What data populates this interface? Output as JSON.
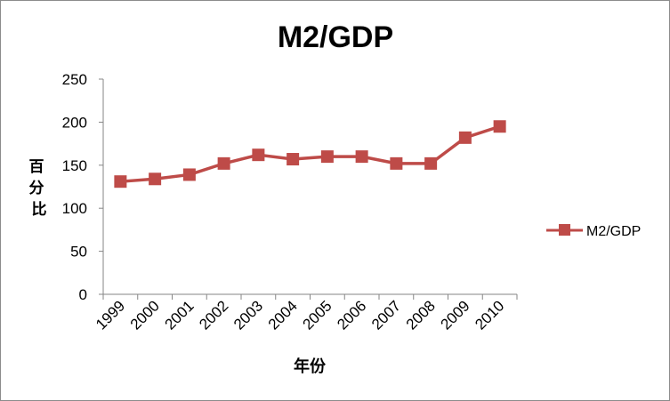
{
  "chart_data": {
    "type": "line",
    "title": "M2/GDP",
    "xlabel": "年份",
    "ylabel": "百分比",
    "categories": [
      "1999",
      "2000",
      "2001",
      "2002",
      "2003",
      "2004",
      "2005",
      "2006",
      "2007",
      "2008",
      "2009",
      "2010"
    ],
    "series": [
      {
        "name": "M2/GDP",
        "values": [
          131,
          134,
          139,
          152,
          162,
          157,
          160,
          160,
          152,
          152,
          182,
          195
        ],
        "color": "#be4b48"
      }
    ],
    "ylim": [
      0,
      250
    ],
    "yticks": [
      0,
      50,
      100,
      150,
      200,
      250
    ],
    "grid": false,
    "legend": "right"
  }
}
